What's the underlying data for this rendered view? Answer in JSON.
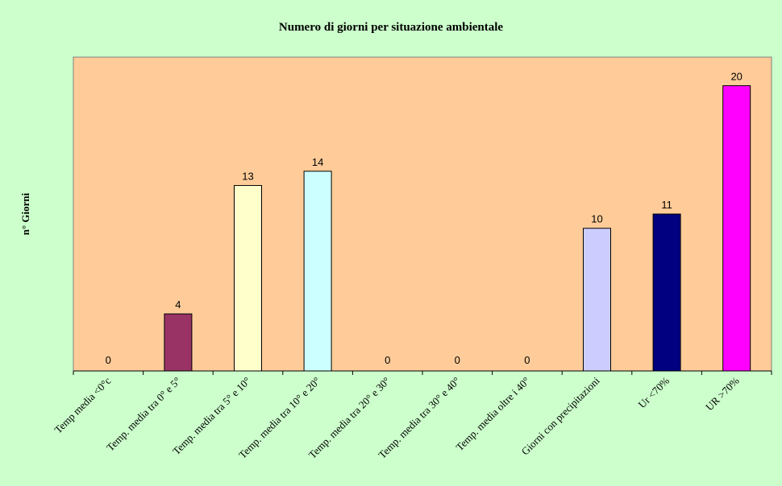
{
  "chart_data": {
    "type": "bar",
    "title": "Numero di giorni per situazione ambientale",
    "xlabel": "",
    "ylabel": "n° Giorni",
    "ylim": [
      0,
      22
    ],
    "grid": false,
    "legend": "none",
    "categories": [
      "Temp media <0°c",
      "Temp. media tra 0° e 5°",
      "Temp. media tra 5° e 10°",
      "Temp. media tra 10° e 20°",
      "Temp. media tra 20° e 30°",
      "Temp. media tra 30° e 40°",
      "Temp. media oltre i 40°",
      "Giorni con precipitazioni",
      "Ur  <70%",
      "UR >70%"
    ],
    "values": [
      0,
      4,
      13,
      14,
      0,
      0,
      0,
      10,
      11,
      20
    ],
    "data_labels": [
      "0",
      "4",
      "13",
      "14",
      "0",
      "0",
      "0",
      "10",
      "11",
      "20"
    ],
    "bar_colors": [
      "#993366",
      "#993366",
      "#ffffcc",
      "#ccffff",
      "#993366",
      "#993366",
      "#993366",
      "#ccccff",
      "#000080",
      "#ff00ff"
    ],
    "plot_background": "#ffcc99",
    "page_background": "#ccffcc"
  }
}
